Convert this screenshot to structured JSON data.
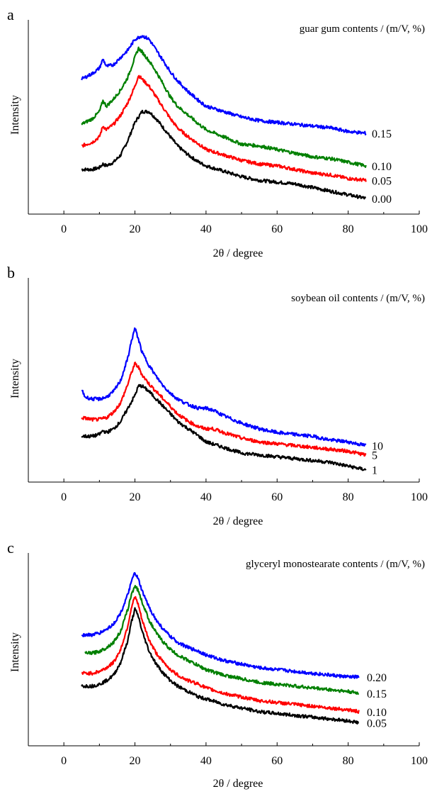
{
  "figure": {
    "background": "#ffffff"
  },
  "chart_data": [
    {
      "type": "line",
      "panel_label": "a",
      "legend_title": "guar gum contents / (m/V, %)",
      "xlabel": "2θ / degree",
      "ylabel": "Intensity",
      "xlim": [
        -10,
        100
      ],
      "xticks": [
        "0",
        "20",
        "40",
        "60",
        "80",
        "100"
      ],
      "grid": false,
      "series": [
        {
          "name": "0.00",
          "color": "#000000",
          "x": [
            5,
            8,
            10,
            11,
            12,
            14,
            16,
            18,
            20,
            22,
            24,
            26,
            28,
            30,
            32,
            35,
            38,
            40,
            45,
            50,
            55,
            60,
            65,
            70,
            75,
            80,
            85
          ],
          "y": [
            0.2,
            0.2,
            0.21,
            0.23,
            0.22,
            0.24,
            0.28,
            0.36,
            0.46,
            0.52,
            0.52,
            0.48,
            0.43,
            0.38,
            0.33,
            0.28,
            0.24,
            0.22,
            0.19,
            0.16,
            0.14,
            0.13,
            0.12,
            0.1,
            0.08,
            0.06,
            0.04
          ]
        },
        {
          "name": "0.05",
          "color": "#ff0000",
          "x": [
            5,
            8,
            10,
            11,
            12,
            14,
            16,
            18,
            20,
            21,
            22,
            24,
            26,
            28,
            30,
            32,
            35,
            38,
            40,
            45,
            50,
            55,
            60,
            65,
            70,
            75,
            80,
            85
          ],
          "y": [
            0.33,
            0.35,
            0.38,
            0.44,
            0.42,
            0.45,
            0.5,
            0.57,
            0.66,
            0.72,
            0.7,
            0.66,
            0.6,
            0.54,
            0.48,
            0.43,
            0.38,
            0.34,
            0.31,
            0.28,
            0.25,
            0.23,
            0.22,
            0.2,
            0.18,
            0.17,
            0.15,
            0.14
          ]
        },
        {
          "name": "0.10",
          "color": "#008000",
          "x": [
            5,
            8,
            10,
            11,
            12,
            14,
            16,
            18,
            20,
            21,
            22,
            24,
            26,
            28,
            30,
            32,
            35,
            38,
            40,
            45,
            50,
            55,
            60,
            65,
            70,
            75,
            80,
            85
          ],
          "y": [
            0.45,
            0.48,
            0.52,
            0.58,
            0.55,
            0.59,
            0.64,
            0.71,
            0.82,
            0.87,
            0.85,
            0.8,
            0.74,
            0.67,
            0.6,
            0.55,
            0.5,
            0.45,
            0.42,
            0.38,
            0.34,
            0.33,
            0.31,
            0.29,
            0.27,
            0.26,
            0.24,
            0.22
          ]
        },
        {
          "name": "0.15",
          "color": "#0000ff",
          "x": [
            5,
            8,
            10,
            11,
            12,
            14,
            16,
            18,
            20,
            22,
            24,
            26,
            28,
            30,
            32,
            35,
            38,
            40,
            45,
            50,
            55,
            60,
            65,
            70,
            75,
            80,
            85
          ],
          "y": [
            0.7,
            0.73,
            0.76,
            0.81,
            0.77,
            0.78,
            0.82,
            0.86,
            0.92,
            0.94,
            0.92,
            0.86,
            0.8,
            0.74,
            0.69,
            0.63,
            0.58,
            0.55,
            0.52,
            0.49,
            0.47,
            0.46,
            0.45,
            0.44,
            0.43,
            0.41,
            0.4
          ]
        }
      ],
      "end_labels": [
        "0.15",
        "0.10",
        "0.05",
        "0.00"
      ]
    },
    {
      "type": "line",
      "panel_label": "b",
      "legend_title": "soybean oil contents / (m/V, %)",
      "xlabel": "2θ / degree",
      "ylabel": "Intensity",
      "xlim": [
        -10,
        100
      ],
      "xticks": [
        "0",
        "20",
        "40",
        "60",
        "80",
        "100"
      ],
      "grid": false,
      "series": [
        {
          "name": "1",
          "color": "#000000",
          "x": [
            5,
            8,
            10,
            11,
            12,
            14,
            16,
            18,
            20,
            21,
            22,
            24,
            26,
            28,
            30,
            32,
            35,
            38,
            40,
            45,
            50,
            55,
            60,
            65,
            70,
            75,
            80,
            85
          ],
          "y": [
            0.2,
            0.2,
            0.21,
            0.23,
            0.22,
            0.24,
            0.28,
            0.35,
            0.42,
            0.47,
            0.47,
            0.44,
            0.4,
            0.36,
            0.32,
            0.28,
            0.24,
            0.2,
            0.17,
            0.14,
            0.11,
            0.1,
            0.09,
            0.08,
            0.07,
            0.06,
            0.04,
            0.02
          ]
        },
        {
          "name": "5",
          "color": "#ff0000",
          "x": [
            5,
            8,
            10,
            12,
            14,
            16,
            18,
            19,
            20,
            21,
            22,
            24,
            26,
            28,
            30,
            32,
            35,
            38,
            40,
            42,
            45,
            50,
            55,
            60,
            65,
            70,
            75,
            80,
            85
          ],
          "y": [
            0.3,
            0.29,
            0.29,
            0.3,
            0.33,
            0.38,
            0.48,
            0.54,
            0.59,
            0.57,
            0.53,
            0.48,
            0.44,
            0.4,
            0.36,
            0.32,
            0.28,
            0.25,
            0.24,
            0.24,
            0.22,
            0.19,
            0.17,
            0.16,
            0.15,
            0.14,
            0.13,
            0.12,
            0.1
          ]
        },
        {
          "name": "10",
          "color": "#0000ff",
          "x": [
            5,
            6,
            8,
            10,
            12,
            14,
            16,
            18,
            19,
            20,
            21,
            22,
            24,
            26,
            28,
            30,
            32,
            35,
            38,
            40,
            42,
            45,
            50,
            55,
            60,
            65,
            70,
            75,
            80,
            85
          ],
          "y": [
            0.45,
            0.41,
            0.4,
            0.4,
            0.41,
            0.44,
            0.5,
            0.62,
            0.71,
            0.78,
            0.72,
            0.65,
            0.58,
            0.52,
            0.47,
            0.43,
            0.4,
            0.37,
            0.35,
            0.35,
            0.34,
            0.31,
            0.27,
            0.24,
            0.22,
            0.21,
            0.2,
            0.18,
            0.17,
            0.15
          ]
        }
      ],
      "end_labels": [
        "10",
        "5",
        "1"
      ]
    },
    {
      "type": "line",
      "panel_label": "c",
      "legend_title": "glyceryl monostearate contents / (m/V, %)",
      "xlabel": "2θ / degree",
      "ylabel": "Intensity",
      "xlim": [
        -10,
        100
      ],
      "xticks": [
        "0",
        "20",
        "40",
        "60",
        "80",
        "100"
      ],
      "grid": false,
      "series": [
        {
          "name": "0.05",
          "color": "#000000",
          "x": [
            5,
            8,
            10,
            12,
            14,
            16,
            18,
            19,
            20,
            21,
            22,
            24,
            26,
            28,
            30,
            32,
            35,
            38,
            40,
            45,
            50,
            55,
            60,
            65,
            70,
            75,
            80,
            83
          ],
          "y": [
            0.28,
            0.28,
            0.29,
            0.31,
            0.34,
            0.41,
            0.53,
            0.63,
            0.7,
            0.66,
            0.58,
            0.47,
            0.4,
            0.35,
            0.31,
            0.28,
            0.25,
            0.22,
            0.21,
            0.18,
            0.16,
            0.14,
            0.13,
            0.12,
            0.11,
            0.1,
            0.09,
            0.08
          ]
        },
        {
          "name": "0.10",
          "color": "#ff0000",
          "x": [
            5,
            8,
            10,
            12,
            14,
            16,
            18,
            19,
            20,
            21,
            22,
            24,
            26,
            28,
            30,
            32,
            35,
            38,
            40,
            45,
            50,
            55,
            60,
            65,
            70,
            75,
            80,
            83
          ],
          "y": [
            0.35,
            0.35,
            0.36,
            0.38,
            0.41,
            0.48,
            0.61,
            0.71,
            0.77,
            0.72,
            0.64,
            0.53,
            0.46,
            0.41,
            0.37,
            0.34,
            0.31,
            0.29,
            0.27,
            0.24,
            0.22,
            0.2,
            0.19,
            0.18,
            0.17,
            0.16,
            0.15,
            0.14
          ]
        },
        {
          "name": "0.15",
          "color": "#008000",
          "x": [
            6,
            8,
            10,
            12,
            14,
            16,
            18,
            19,
            20,
            21,
            22,
            24,
            26,
            28,
            30,
            32,
            35,
            38,
            40,
            45,
            50,
            55,
            60,
            65,
            70,
            75,
            80,
            83
          ],
          "y": [
            0.46,
            0.46,
            0.47,
            0.49,
            0.52,
            0.58,
            0.7,
            0.78,
            0.83,
            0.8,
            0.74,
            0.64,
            0.57,
            0.52,
            0.48,
            0.45,
            0.42,
            0.39,
            0.37,
            0.34,
            0.32,
            0.3,
            0.29,
            0.28,
            0.27,
            0.26,
            0.25,
            0.24
          ]
        },
        {
          "name": "0.20",
          "color": "#0000ff",
          "x": [
            5,
            8,
            10,
            12,
            14,
            16,
            18,
            19,
            20,
            21,
            22,
            24,
            26,
            28,
            30,
            32,
            35,
            38,
            40,
            45,
            50,
            55,
            60,
            65,
            70,
            75,
            80,
            83
          ],
          "y": [
            0.56,
            0.56,
            0.57,
            0.59,
            0.62,
            0.68,
            0.78,
            0.85,
            0.9,
            0.86,
            0.8,
            0.71,
            0.64,
            0.59,
            0.55,
            0.52,
            0.49,
            0.47,
            0.45,
            0.42,
            0.4,
            0.38,
            0.37,
            0.36,
            0.35,
            0.34,
            0.33,
            0.33
          ]
        }
      ],
      "end_labels": [
        "0.20",
        "0.15",
        "0.10",
        "0.05"
      ]
    }
  ]
}
